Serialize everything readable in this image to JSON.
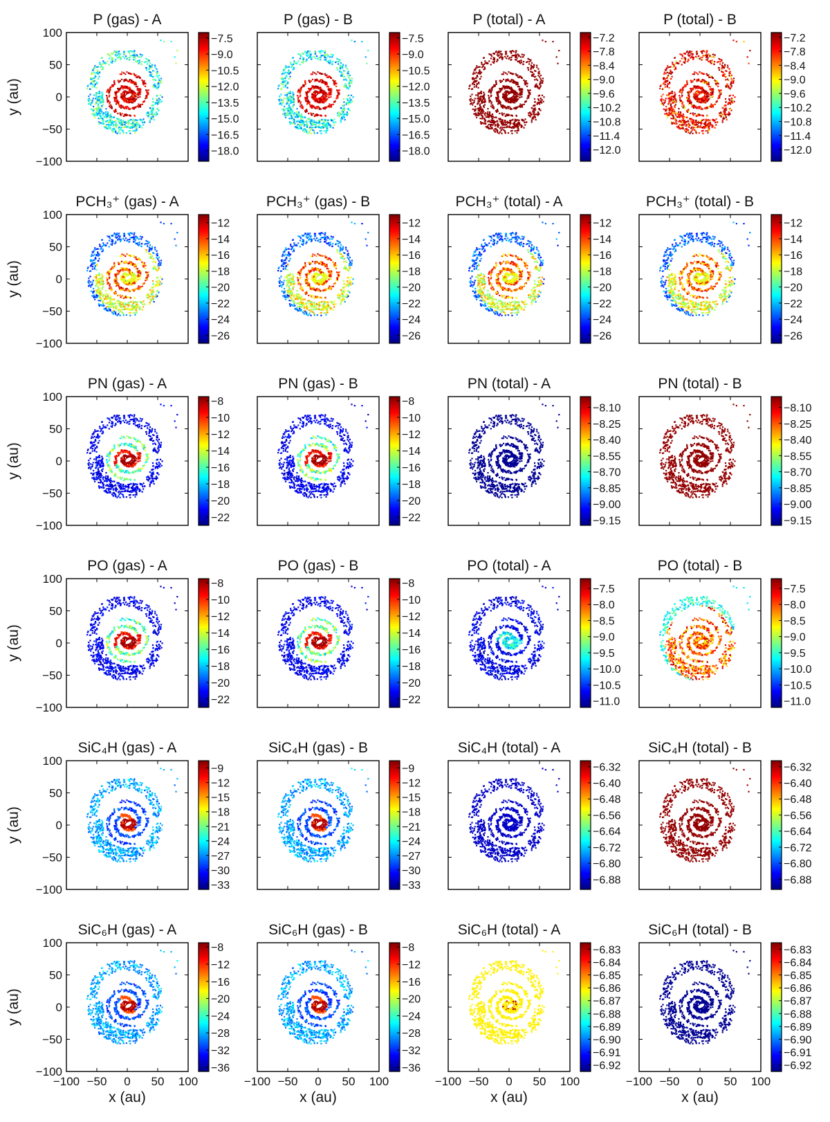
{
  "figure": {
    "xlabel": "x (au)",
    "ylabel": "y (au)",
    "columns": [
      "gas - A",
      "gas - B",
      "total - A",
      "total - B"
    ],
    "colormap": [
      "#00007f",
      "#0000ff",
      "#007fff",
      "#00ffff",
      "#7fff7f",
      "#ffff00",
      "#ff7f00",
      "#ff0000",
      "#7f0000"
    ]
  },
  "chart_data": [
    {
      "type": "scatter",
      "title": "P (gas) -  A",
      "xlim": [
        -100,
        100
      ],
      "ylim": [
        -100,
        100
      ],
      "xticks": [
        -100,
        -50,
        0,
        50,
        100
      ],
      "yticks": [
        -100,
        -50,
        0,
        50,
        100
      ],
      "colorbar": {
        "min": -19,
        "max": -7,
        "ticks": [
          "-7.5",
          "-9.0",
          "-10.5",
          "-12.0",
          "-13.5",
          "-15.0",
          "-16.5",
          "-18.0"
        ]
      },
      "pattern": "spiral-hot-arm"
    },
    {
      "type": "scatter",
      "title": "P (gas) -  B",
      "xlim": [
        -100,
        100
      ],
      "ylim": [
        -100,
        100
      ],
      "xticks": [
        -100,
        -50,
        0,
        50,
        100
      ],
      "yticks": [
        -100,
        -50,
        0,
        50,
        100
      ],
      "colorbar": {
        "min": -19,
        "max": -7,
        "ticks": [
          "-7.5",
          "-9.0",
          "-10.5",
          "-12.0",
          "-13.5",
          "-15.0",
          "-16.5",
          "-18.0"
        ]
      },
      "pattern": "spiral-hot-arm"
    },
    {
      "type": "scatter",
      "title": "P (total) -  A",
      "xlim": [
        -100,
        100
      ],
      "ylim": [
        -100,
        100
      ],
      "xticks": [
        -100,
        -50,
        0,
        50,
        100
      ],
      "yticks": [
        -100,
        -50,
        0,
        50,
        100
      ],
      "colorbar": {
        "min": -12.5,
        "max": -7,
        "ticks": [
          "-7.2",
          "-7.8",
          "-8.4",
          "-9.0",
          "-9.6",
          "-10.2",
          "-10.8",
          "-11.4",
          "-12.0"
        ]
      },
      "pattern": "uniform-darkred"
    },
    {
      "type": "scatter",
      "title": "P (total) -  B",
      "xlim": [
        -100,
        100
      ],
      "ylim": [
        -100,
        100
      ],
      "xticks": [
        -100,
        -50,
        0,
        50,
        100
      ],
      "yticks": [
        -100,
        -50,
        0,
        50,
        100
      ],
      "colorbar": {
        "min": -12.5,
        "max": -7,
        "ticks": [
          "-7.2",
          "-7.8",
          "-8.4",
          "-9.0",
          "-9.6",
          "-10.2",
          "-10.8",
          "-11.4",
          "-12.0"
        ]
      },
      "pattern": "mottled-red"
    },
    {
      "type": "scatter",
      "title": "PCH₃⁺ (gas) -  A",
      "xlim": [
        -100,
        100
      ],
      "ylim": [
        -100,
        100
      ],
      "xticks": [
        -100,
        -50,
        0,
        50,
        100
      ],
      "yticks": [
        -100,
        -50,
        0,
        50,
        100
      ],
      "colorbar": {
        "min": -27,
        "max": -11,
        "ticks": [
          "-12",
          "-14",
          "-16",
          "-18",
          "-20",
          "-22",
          "-24",
          "-26"
        ]
      },
      "pattern": "spiral-warm"
    },
    {
      "type": "scatter",
      "title": "PCH₃⁺ (gas) -  B",
      "xlim": [
        -100,
        100
      ],
      "ylim": [
        -100,
        100
      ],
      "xticks": [
        -100,
        -50,
        0,
        50,
        100
      ],
      "yticks": [
        -100,
        -50,
        0,
        50,
        100
      ],
      "colorbar": {
        "min": -27,
        "max": -11,
        "ticks": [
          "-12",
          "-14",
          "-16",
          "-18",
          "-20",
          "-22",
          "-24",
          "-26"
        ]
      },
      "pattern": "spiral-warm"
    },
    {
      "type": "scatter",
      "title": "PCH₃⁺ (total) -  A",
      "xlim": [
        -100,
        100
      ],
      "ylim": [
        -100,
        100
      ],
      "xticks": [
        -100,
        -50,
        0,
        50,
        100
      ],
      "yticks": [
        -100,
        -50,
        0,
        50,
        100
      ],
      "colorbar": {
        "min": -27,
        "max": -11,
        "ticks": [
          "-12",
          "-14",
          "-16",
          "-18",
          "-20",
          "-22",
          "-24",
          "-26"
        ]
      },
      "pattern": "spiral-warm"
    },
    {
      "type": "scatter",
      "title": "PCH₃⁺ (total) -  B",
      "xlim": [
        -100,
        100
      ],
      "ylim": [
        -100,
        100
      ],
      "xticks": [
        -100,
        -50,
        0,
        50,
        100
      ],
      "yticks": [
        -100,
        -50,
        0,
        50,
        100
      ],
      "colorbar": {
        "min": -27,
        "max": -11,
        "ticks": [
          "-12",
          "-14",
          "-16",
          "-18",
          "-20",
          "-22",
          "-24",
          "-26"
        ]
      },
      "pattern": "spiral-warm"
    },
    {
      "type": "scatter",
      "title": "PN (gas) -  A",
      "xlim": [
        -100,
        100
      ],
      "ylim": [
        -100,
        100
      ],
      "xticks": [
        -100,
        -50,
        0,
        50,
        100
      ],
      "yticks": [
        -100,
        -50,
        0,
        50,
        100
      ],
      "colorbar": {
        "min": -23,
        "max": -7.5,
        "ticks": [
          "-8",
          "-10",
          "-12",
          "-14",
          "-16",
          "-18",
          "-20",
          "-22"
        ]
      },
      "pattern": "core-hot-blue"
    },
    {
      "type": "scatter",
      "title": "PN (gas) -  B",
      "xlim": [
        -100,
        100
      ],
      "ylim": [
        -100,
        100
      ],
      "xticks": [
        -100,
        -50,
        0,
        50,
        100
      ],
      "yticks": [
        -100,
        -50,
        0,
        50,
        100
      ],
      "colorbar": {
        "min": -23,
        "max": -7.5,
        "ticks": [
          "-8",
          "-10",
          "-12",
          "-14",
          "-16",
          "-18",
          "-20",
          "-22"
        ]
      },
      "pattern": "core-hot-blue"
    },
    {
      "type": "scatter",
      "title": "PN (total) -  A",
      "xlim": [
        -100,
        100
      ],
      "ylim": [
        -100,
        100
      ],
      "xticks": [
        -100,
        -50,
        0,
        50,
        100
      ],
      "yticks": [
        -100,
        -50,
        0,
        50,
        100
      ],
      "colorbar": {
        "min": -9.2,
        "max": -8.0,
        "ticks": [
          "-8.10",
          "-8.25",
          "-8.40",
          "-8.55",
          "-8.70",
          "-8.85",
          "-9.00",
          "-9.15"
        ]
      },
      "pattern": "uniform-navy"
    },
    {
      "type": "scatter",
      "title": "PN (total) -  B",
      "xlim": [
        -100,
        100
      ],
      "ylim": [
        -100,
        100
      ],
      "xticks": [
        -100,
        -50,
        0,
        50,
        100
      ],
      "yticks": [
        -100,
        -50,
        0,
        50,
        100
      ],
      "colorbar": {
        "min": -9.2,
        "max": -8.0,
        "ticks": [
          "-8.10",
          "-8.25",
          "-8.40",
          "-8.55",
          "-8.70",
          "-8.85",
          "-9.00",
          "-9.15"
        ]
      },
      "pattern": "uniform-darkred"
    },
    {
      "type": "scatter",
      "title": "PO (gas) -  A",
      "xlim": [
        -100,
        100
      ],
      "ylim": [
        -100,
        100
      ],
      "xticks": [
        -100,
        -50,
        0,
        50,
        100
      ],
      "yticks": [
        -100,
        -50,
        0,
        50,
        100
      ],
      "colorbar": {
        "min": -23,
        "max": -7.5,
        "ticks": [
          "-8",
          "-10",
          "-12",
          "-14",
          "-16",
          "-18",
          "-20",
          "-22"
        ]
      },
      "pattern": "core-hot-blue"
    },
    {
      "type": "scatter",
      "title": "PO (gas) -  B",
      "xlim": [
        -100,
        100
      ],
      "ylim": [
        -100,
        100
      ],
      "xticks": [
        -100,
        -50,
        0,
        50,
        100
      ],
      "yticks": [
        -100,
        -50,
        0,
        50,
        100
      ],
      "colorbar": {
        "min": -23,
        "max": -7.5,
        "ticks": [
          "-8",
          "-10",
          "-12",
          "-14",
          "-16",
          "-18",
          "-20",
          "-22"
        ]
      },
      "pattern": "core-hot-blue"
    },
    {
      "type": "scatter",
      "title": "PO (total) -  A",
      "xlim": [
        -100,
        100
      ],
      "ylim": [
        -100,
        100
      ],
      "xticks": [
        -100,
        -50,
        0,
        50,
        100
      ],
      "yticks": [
        -100,
        -50,
        0,
        50,
        100
      ],
      "colorbar": {
        "min": -11.2,
        "max": -7.2,
        "ticks": [
          "-7.5",
          "-8.0",
          "-8.5",
          "-9.0",
          "-9.5",
          "-10.0",
          "-10.5",
          "-11.0"
        ]
      },
      "pattern": "mottled-navy"
    },
    {
      "type": "scatter",
      "title": "PO (total) -  B",
      "xlim": [
        -100,
        100
      ],
      "ylim": [
        -100,
        100
      ],
      "xticks": [
        -100,
        -50,
        0,
        50,
        100
      ],
      "yticks": [
        -100,
        -50,
        0,
        50,
        100
      ],
      "colorbar": {
        "min": -11.2,
        "max": -7.2,
        "ticks": [
          "-7.5",
          "-8.0",
          "-8.5",
          "-9.0",
          "-9.5",
          "-10.0",
          "-10.5",
          "-11.0"
        ]
      },
      "pattern": "mottled-orange"
    },
    {
      "type": "scatter",
      "title": "SiC₄H (gas) -  A",
      "xlim": [
        -100,
        100
      ],
      "ylim": [
        -100,
        100
      ],
      "xticks": [
        -100,
        -50,
        0,
        50,
        100
      ],
      "yticks": [
        -100,
        -50,
        0,
        50,
        100
      ],
      "colorbar": {
        "min": -34,
        "max": -7.5,
        "ticks": [
          "-9",
          "-12",
          "-15",
          "-18",
          "-21",
          "-24",
          "-27",
          "-30",
          "-33"
        ]
      },
      "pattern": "core-hot-cyan"
    },
    {
      "type": "scatter",
      "title": "SiC₄H (gas) -  B",
      "xlim": [
        -100,
        100
      ],
      "ylim": [
        -100,
        100
      ],
      "xticks": [
        -100,
        -50,
        0,
        50,
        100
      ],
      "yticks": [
        -100,
        -50,
        0,
        50,
        100
      ],
      "colorbar": {
        "min": -34,
        "max": -7.5,
        "ticks": [
          "-9",
          "-12",
          "-15",
          "-18",
          "-21",
          "-24",
          "-27",
          "-30",
          "-33"
        ]
      },
      "pattern": "core-hot-cyan"
    },
    {
      "type": "scatter",
      "title": "SiC₄H (total) -  A",
      "xlim": [
        -100,
        100
      ],
      "ylim": [
        -100,
        100
      ],
      "xticks": [
        -100,
        -50,
        0,
        50,
        100
      ],
      "yticks": [
        -100,
        -50,
        0,
        50,
        100
      ],
      "colorbar": {
        "min": -6.93,
        "max": -6.29,
        "ticks": [
          "-6.32",
          "-6.40",
          "-6.48",
          "-6.56",
          "-6.64",
          "-6.72",
          "-6.80",
          "-6.88"
        ]
      },
      "pattern": "uniform-blue"
    },
    {
      "type": "scatter",
      "title": "SiC₄H (total) -  B",
      "xlim": [
        -100,
        100
      ],
      "ylim": [
        -100,
        100
      ],
      "xticks": [
        -100,
        -50,
        0,
        50,
        100
      ],
      "yticks": [
        -100,
        -50,
        0,
        50,
        100
      ],
      "colorbar": {
        "min": -6.93,
        "max": -6.29,
        "ticks": [
          "-6.32",
          "-6.40",
          "-6.48",
          "-6.56",
          "-6.64",
          "-6.72",
          "-6.80",
          "-6.88"
        ]
      },
      "pattern": "uniform-darkred"
    },
    {
      "type": "scatter",
      "title": "SiC₆H (gas) -  A",
      "xlim": [
        -100,
        100
      ],
      "ylim": [
        -100,
        100
      ],
      "xticks": [
        -100,
        -50,
        0,
        50,
        100
      ],
      "yticks": [
        -100,
        -50,
        0,
        50,
        100
      ],
      "colorbar": {
        "min": -37,
        "max": -7,
        "ticks": [
          "-8",
          "-12",
          "-16",
          "-20",
          "-24",
          "-28",
          "-32",
          "-36"
        ]
      },
      "pattern": "core-hot-cyan"
    },
    {
      "type": "scatter",
      "title": "SiC₆H (gas) -  B",
      "xlim": [
        -100,
        100
      ],
      "ylim": [
        -100,
        100
      ],
      "xticks": [
        -100,
        -50,
        0,
        50,
        100
      ],
      "yticks": [
        -100,
        -50,
        0,
        50,
        100
      ],
      "colorbar": {
        "min": -37,
        "max": -7,
        "ticks": [
          "-8",
          "-12",
          "-16",
          "-20",
          "-24",
          "-28",
          "-32",
          "-36"
        ]
      },
      "pattern": "core-hot-cyan"
    },
    {
      "type": "scatter",
      "title": "SiC₆H (total) -  A",
      "xlim": [
        -100,
        100
      ],
      "ylim": [
        -100,
        100
      ],
      "xticks": [
        -100,
        -50,
        0,
        50,
        100
      ],
      "yticks": [
        -100,
        -50,
        0,
        50,
        100
      ],
      "colorbar": {
        "min": -6.925,
        "max": -6.825,
        "ticks": [
          "-6.83",
          "-6.84",
          "-6.85",
          "-6.86",
          "-6.87",
          "-6.88",
          "-6.89",
          "-6.90",
          "-6.91",
          "-6.92"
        ]
      },
      "pattern": "uniform-yellow"
    },
    {
      "type": "scatter",
      "title": "SiC₆H (total) -  B",
      "xlim": [
        -100,
        100
      ],
      "ylim": [
        -100,
        100
      ],
      "xticks": [
        -100,
        -50,
        0,
        50,
        100
      ],
      "yticks": [
        -100,
        -50,
        0,
        50,
        100
      ],
      "colorbar": {
        "min": -6.925,
        "max": -6.825,
        "ticks": [
          "-6.83",
          "-6.84",
          "-6.85",
          "-6.86",
          "-6.87",
          "-6.88",
          "-6.89",
          "-6.90",
          "-6.91",
          "-6.92"
        ]
      },
      "pattern": "uniform-navy"
    }
  ]
}
